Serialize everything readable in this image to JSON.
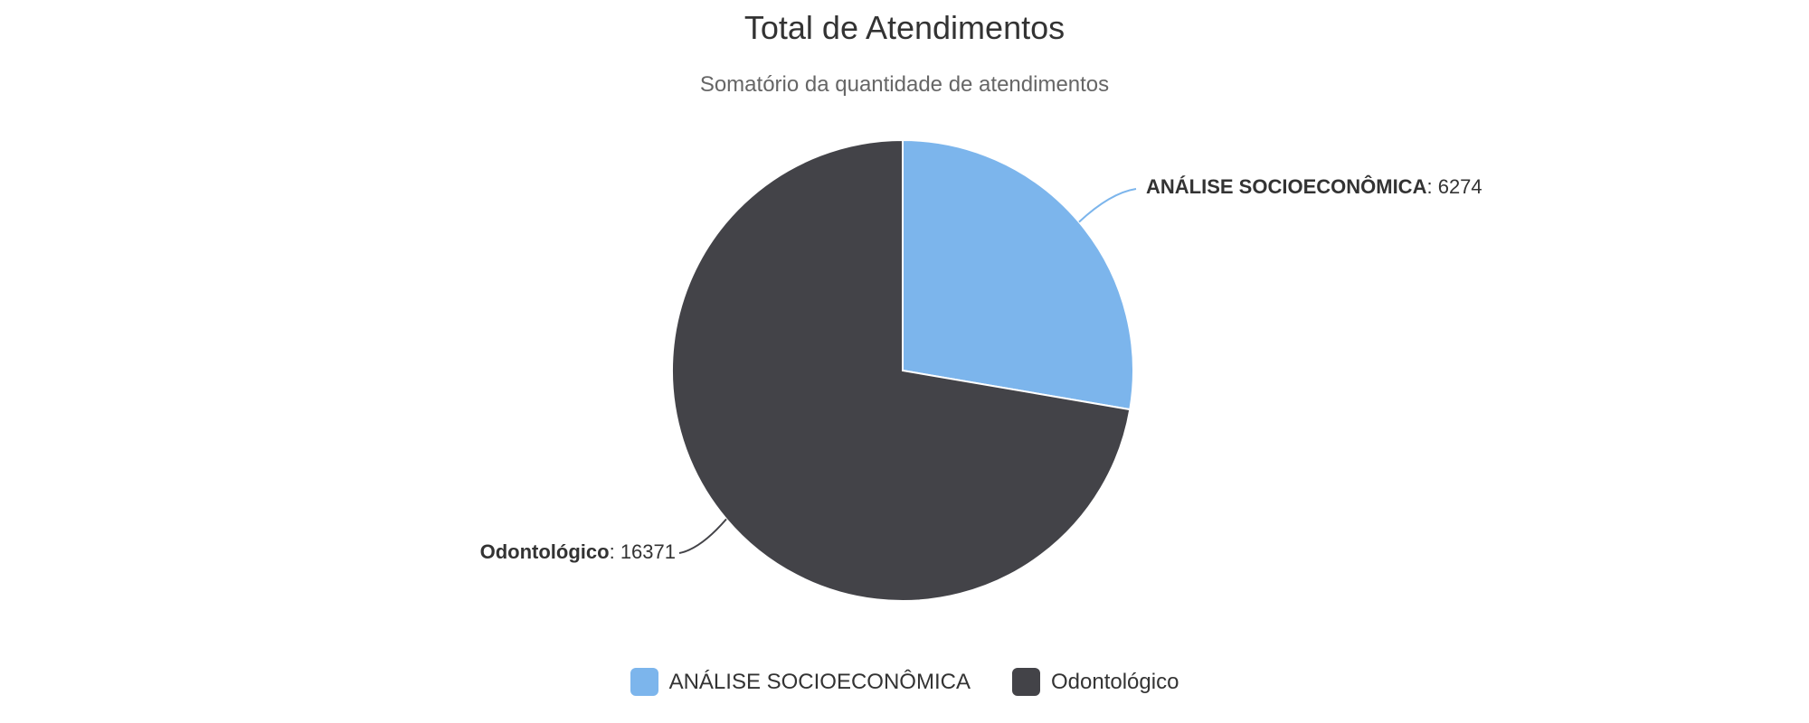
{
  "chart_data": {
    "type": "pie",
    "title": "Total de Atendimentos",
    "subtitle": "Somatório da quantidade de atendimentos",
    "series": [
      {
        "name": "ANÁLISE SOCIOECONÔMICA",
        "value": 6274,
        "color": "#7cb5ec"
      },
      {
        "name": "Odontológico",
        "value": 16371,
        "color": "#434348"
      }
    ],
    "slice_border_color": "#ffffff",
    "start_angle_deg": 0,
    "direction": "clockwise",
    "legend_position": "bottom-center",
    "title_color": "#333333",
    "subtitle_color": "#666666",
    "label_color": "#333333"
  },
  "labels": {
    "separator": ": "
  }
}
